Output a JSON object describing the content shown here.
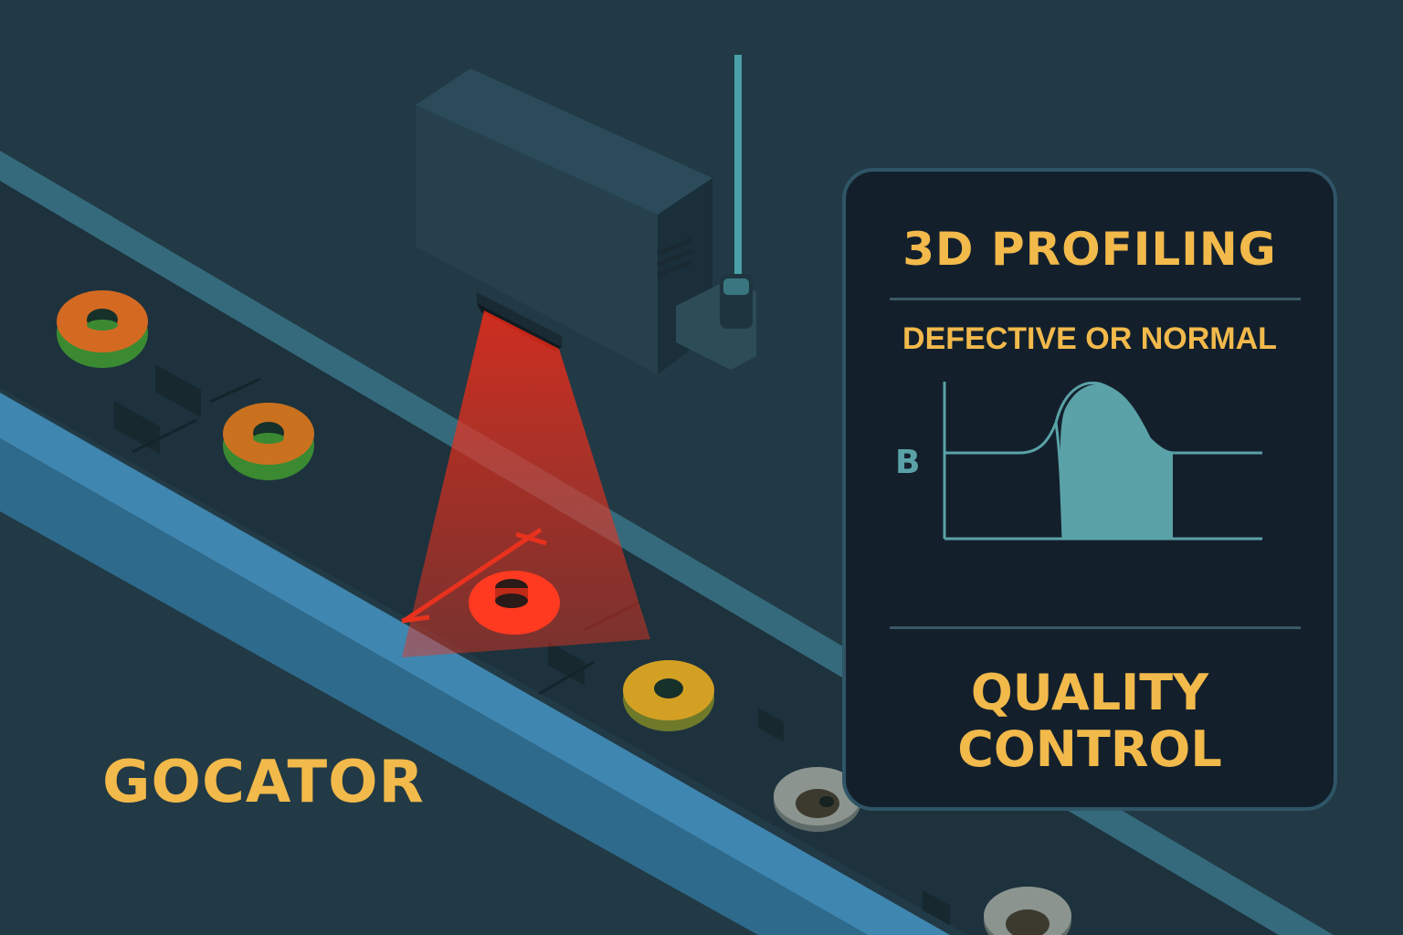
{
  "brand": {
    "label": "GOCATOR"
  },
  "panel": {
    "title": "3D PROFILING",
    "subtitle": "DEFECTIVE OR NORMAL",
    "axis_label": "B",
    "footer_line1": "QUALITY",
    "footer_line2": "CONTROL"
  },
  "colors": {
    "background": "#213a45",
    "text_accent": "#f2b94b",
    "laser": "#e8321e",
    "belt_blue": "#3f86b0",
    "panel_bg": "#13202c",
    "profile": "#5aa2a8"
  },
  "icons": [
    "laser-sensor-icon",
    "washer-part-icon"
  ]
}
